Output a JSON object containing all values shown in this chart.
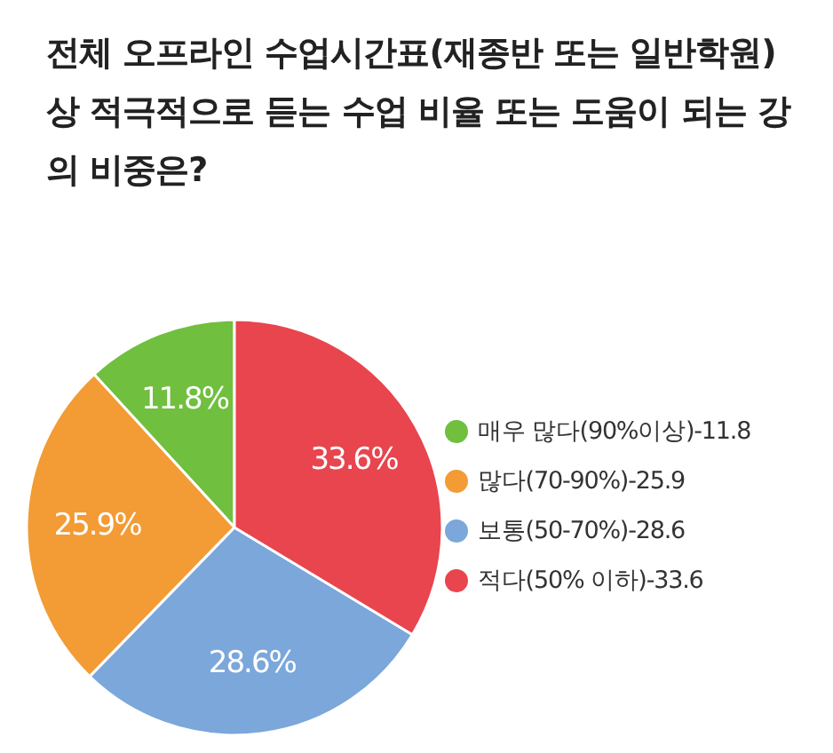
{
  "chart_data": {
    "type": "pie",
    "title": "전체 오프라인 수업시간표(재종반 또는 일반학원) 상 적극적으로 듣는 수업 비율 또는 도움이 되는 강의 비중은?",
    "categories": [
      "매우 많다(90%이상)-11.8",
      "많다(70-90%)-25.9",
      "보통(50-70%)-28.6",
      "적다(50% 이하)-33.6"
    ],
    "values": [
      11.8,
      25.9,
      28.6,
      33.6
    ],
    "value_labels": [
      "11.8%",
      "25.9%",
      "28.6%",
      "33.6%"
    ],
    "colors": [
      "#70bf3f",
      "#f39b34",
      "#7ba7da",
      "#e8454e"
    ],
    "legend": "right"
  }
}
